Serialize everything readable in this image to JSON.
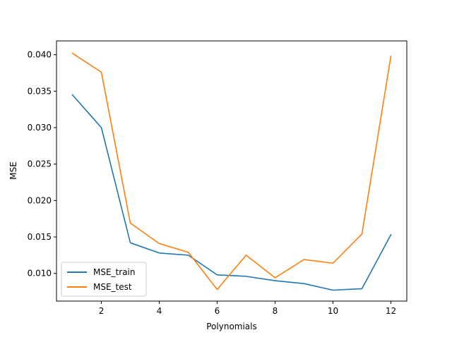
{
  "chart_data": {
    "type": "line",
    "title": "",
    "xlabel": "Polynomials",
    "ylabel": "MSE",
    "x": [
      1,
      2,
      3,
      4,
      5,
      6,
      7,
      8,
      9,
      10,
      11,
      12
    ],
    "xlim": [
      0.45,
      12.55
    ],
    "ylim": [
      0.0062,
      0.0419
    ],
    "xticks": [
      2,
      4,
      6,
      8,
      10,
      12
    ],
    "xtick_labels": [
      "2",
      "4",
      "6",
      "8",
      "10",
      "12"
    ],
    "yticks": [
      0.01,
      0.015,
      0.02,
      0.025,
      0.03,
      0.035,
      0.04
    ],
    "ytick_labels": [
      "0.010",
      "0.015",
      "0.020",
      "0.025",
      "0.030",
      "0.035",
      "0.040"
    ],
    "grid": false,
    "legend_position": "lower-left",
    "series": [
      {
        "name": "MSE_train",
        "color": "#1f77b4",
        "values": [
          0.0345,
          0.03,
          0.0142,
          0.0128,
          0.0125,
          0.0098,
          0.0096,
          0.009,
          0.0086,
          0.0077,
          0.0079,
          0.0153
        ]
      },
      {
        "name": "MSE_test",
        "color": "#ff7f0e",
        "values": [
          0.0402,
          0.0376,
          0.0169,
          0.0141,
          0.0129,
          0.0078,
          0.0125,
          0.0094,
          0.0119,
          0.0114,
          0.0154,
          0.0398
        ]
      }
    ]
  }
}
